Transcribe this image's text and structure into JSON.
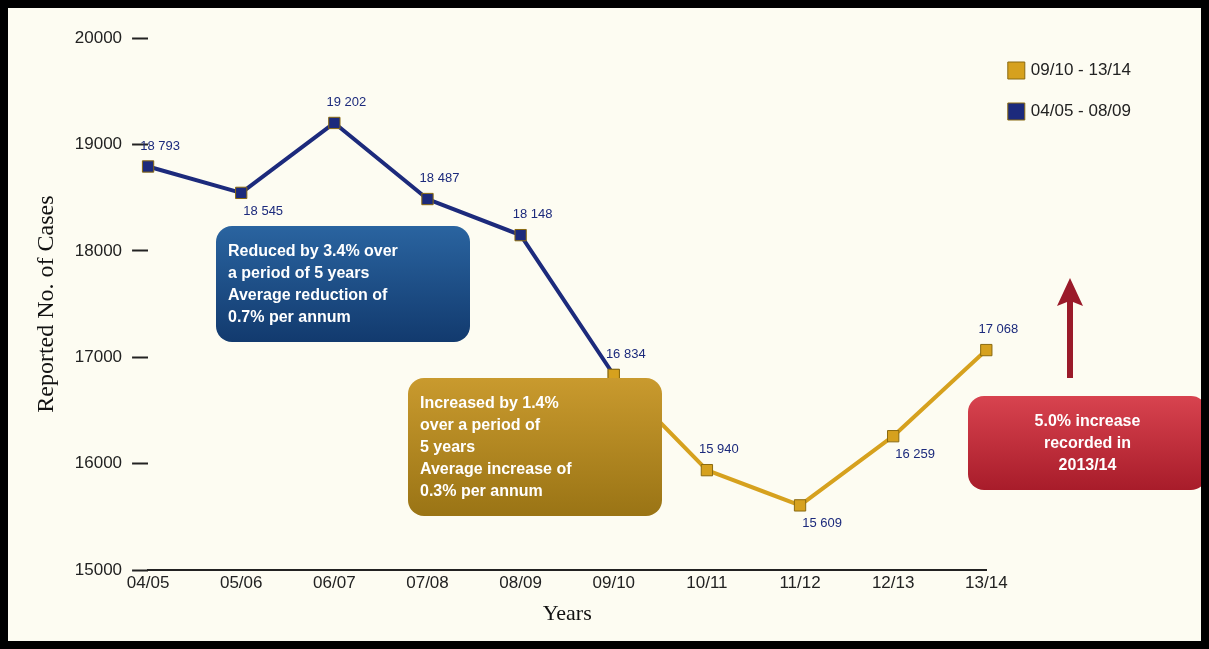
{
  "chart_data": {
    "type": "line",
    "xlabel": "Years",
    "ylabel": "Reported No. of Cases",
    "categories": [
      "04/05",
      "05/06",
      "06/07",
      "07/08",
      "08/09",
      "09/10",
      "10/11",
      "11/12",
      "12/13",
      "13/14"
    ],
    "series": [
      {
        "name": "09/10 - 13/14",
        "color": "#d6a11e",
        "values": [
          null,
          null,
          null,
          null,
          null,
          16834,
          15940,
          15609,
          16259,
          17068
        ],
        "value_labels": [
          null,
          null,
          null,
          null,
          null,
          "16 834",
          "15 940",
          "15 609",
          "16 259",
          "17 068"
        ]
      },
      {
        "name": "04/05 - 08/09",
        "color": "#1c2a7c",
        "values": [
          18793,
          18545,
          19202,
          18487,
          18148,
          16834,
          null,
          null,
          null,
          null
        ],
        "value_labels": [
          "18 793",
          "18 545",
          "19 202",
          "18 487",
          "18 148",
          null,
          null,
          null,
          null,
          null
        ]
      }
    ],
    "ylim": [
      15000,
      20000
    ],
    "yticks": [
      15000,
      16000,
      17000,
      18000,
      19000,
      20000
    ],
    "grid": false,
    "legend": "top right",
    "marker": "square",
    "line_style": "solid",
    "annotations": [
      "Reduced by 3.4% over\na period of 5 years\nAverage reduction of\n0.7% per annum",
      "Increased by 1.4%\nover a period of\n5 years\nAverage increase of\n0.3% per annum",
      "5.0% increase\nrecorded in\n2013/14"
    ]
  }
}
